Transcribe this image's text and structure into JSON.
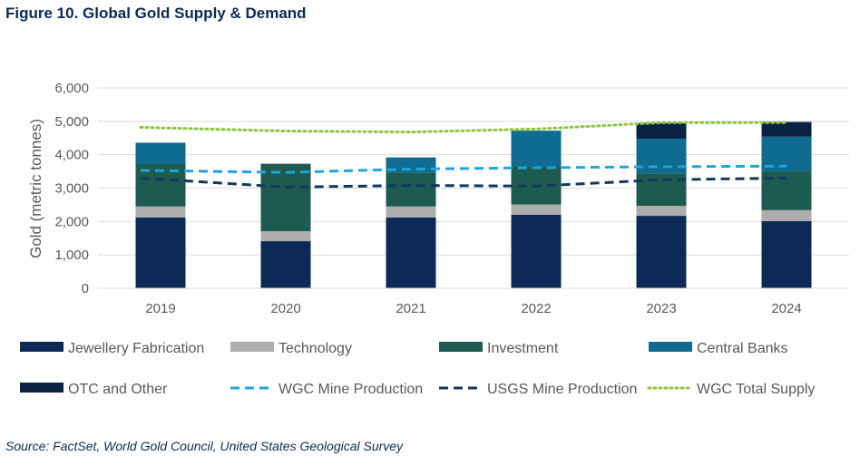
{
  "figure_title": "Figure 10. Global Gold Supply & Demand",
  "source": "Source: FactSet, World Gold Council, United States Geological Survey",
  "chart_data": {
    "type": "bar",
    "stacked": true,
    "categories": [
      "2019",
      "2020",
      "2021",
      "2022",
      "2023",
      "2024"
    ],
    "ylabel": "Gold (metric tonnes)",
    "xlabel": "",
    "ylim": [
      0,
      6000
    ],
    "yticks": [
      0,
      1000,
      2000,
      3000,
      4000,
      5000,
      6000
    ],
    "ytick_labels": [
      "0",
      "1,000",
      "2,000",
      "3,000",
      "4,000",
      "5,000",
      "6,000"
    ],
    "grid": true,
    "legend_position": "bottom",
    "bar_series": [
      {
        "name": "Jewellery Fabrication",
        "color": "#0d2a56",
        "values": [
          2120,
          1410,
          2120,
          2200,
          2170,
          2010
        ]
      },
      {
        "name": "Technology",
        "color": "#adadad",
        "values": [
          330,
          300,
          330,
          310,
          300,
          330
        ]
      },
      {
        "name": "Investment",
        "color": "#1d5a4f",
        "values": [
          1270,
          2020,
          1020,
          1130,
          960,
          1160
        ]
      },
      {
        "name": "Central Banks",
        "color": "#0f6b8f",
        "values": [
          640,
          0,
          450,
          1080,
          1050,
          1040
        ]
      },
      {
        "name": "OTC and Other",
        "color": "#0b2244",
        "values": [
          0,
          0,
          0,
          0,
          470,
          440
        ]
      }
    ],
    "line_series": [
      {
        "name": "WGC Mine Production",
        "color": "#1ea5e0",
        "style": "dashed",
        "values": [
          3530,
          3470,
          3570,
          3610,
          3640,
          3660
        ]
      },
      {
        "name": "USGS Mine Production",
        "color": "#12385e",
        "style": "dashed",
        "values": [
          3300,
          3030,
          3080,
          3060,
          3250,
          3300
        ]
      },
      {
        "name": "WGC Total Supply",
        "color": "#8cc63f",
        "style": "dotted",
        "values": [
          4820,
          4710,
          4680,
          4770,
          4960,
          4960
        ]
      }
    ]
  }
}
